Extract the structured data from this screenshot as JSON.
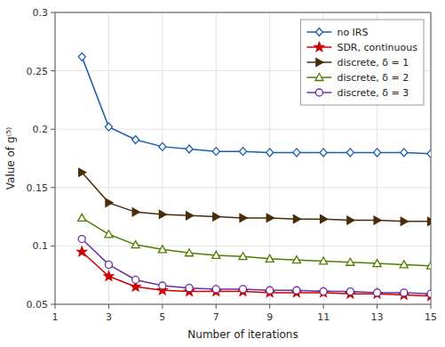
{
  "chart_data": {
    "type": "line",
    "x": [
      2,
      3,
      4,
      5,
      6,
      7,
      8,
      9,
      10,
      11,
      12,
      13,
      14,
      15
    ],
    "series": [
      {
        "name": "no IRS",
        "color": "#1a5fa8",
        "marker": "diamond-open",
        "values": [
          0.262,
          0.202,
          0.191,
          0.185,
          0.183,
          0.181,
          0.181,
          0.18,
          0.18,
          0.18,
          0.18,
          0.18,
          0.18,
          0.179
        ]
      },
      {
        "name": "SDR, continuous",
        "color": "#cc0000",
        "marker": "star",
        "values": [
          0.095,
          0.074,
          0.065,
          0.062,
          0.061,
          0.061,
          0.061,
          0.06,
          0.06,
          0.06,
          0.059,
          0.059,
          0.058,
          0.057
        ]
      },
      {
        "name": "discrete, δ = 1",
        "color": "#4a2c0a",
        "marker": "triangle-right",
        "values": [
          0.163,
          0.137,
          0.129,
          0.127,
          0.126,
          0.125,
          0.124,
          0.124,
          0.123,
          0.123,
          0.122,
          0.122,
          0.121,
          0.121
        ]
      },
      {
        "name": "discrete, δ = 2",
        "color": "#4e7d00",
        "marker": "triangle-up-open",
        "values": [
          0.124,
          0.11,
          0.101,
          0.097,
          0.094,
          0.092,
          0.091,
          0.089,
          0.088,
          0.087,
          0.086,
          0.085,
          0.084,
          0.083
        ]
      },
      {
        "name": "discrete, δ = 3",
        "color": "#6b2fa0",
        "marker": "circle-open",
        "values": [
          0.106,
          0.084,
          0.071,
          0.066,
          0.064,
          0.063,
          0.063,
          0.062,
          0.062,
          0.061,
          0.061,
          0.06,
          0.06,
          0.059
        ]
      }
    ],
    "xlabel": "Number of iterations",
    "ylabel": "Value of g⁽⁵⁾",
    "xlim": [
      1,
      15
    ],
    "ylim": [
      0.05,
      0.3
    ],
    "xticks": [
      1,
      3,
      5,
      7,
      9,
      11,
      13,
      15
    ],
    "yticks": [
      0.05,
      0.1,
      0.15,
      0.2,
      0.25,
      0.3
    ],
    "grid": true,
    "legend": "upper-right"
  }
}
